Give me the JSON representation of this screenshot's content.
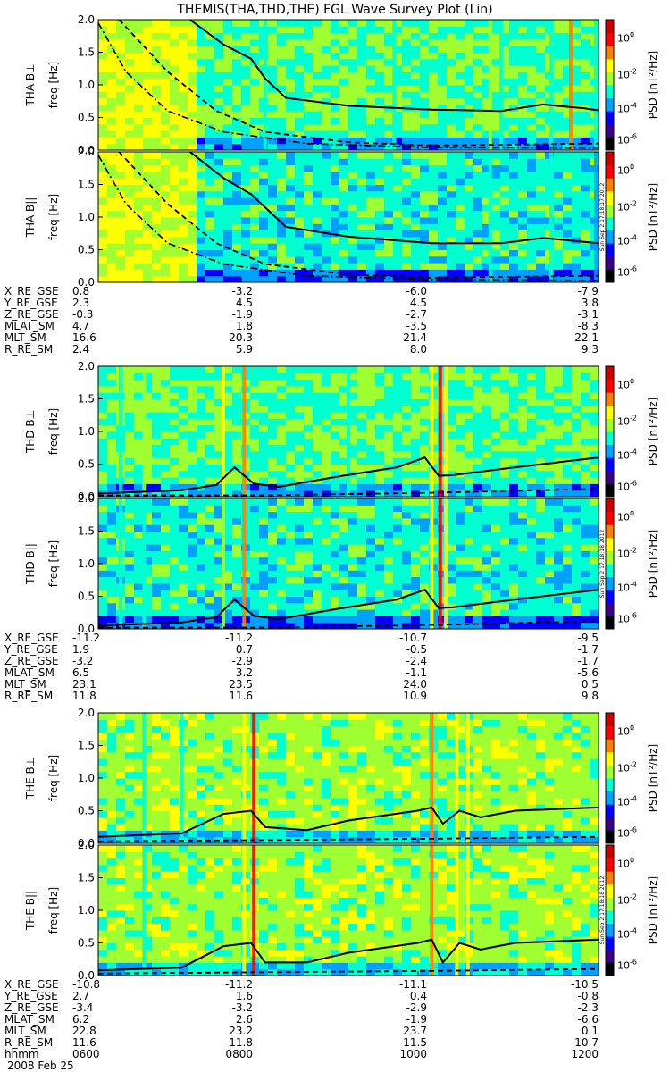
{
  "title": "THEMIS(THA,THD,THE) FGL Wave Survey Plot (Lin)",
  "date_label": "2008 Feb 25",
  "colorbar": {
    "label": "PSD [nT²/Hz]",
    "ticks": [
      {
        "base": "10",
        "exp": "0"
      },
      {
        "base": "10",
        "exp": "-2"
      },
      {
        "base": "10",
        "exp": "-4"
      },
      {
        "base": "10",
        "exp": "-6"
      }
    ],
    "colors": [
      "#000000",
      "#3a0088",
      "#0000ff",
      "#00a0ff",
      "#00ffd0",
      "#a0ff30",
      "#ffff00",
      "#ff8000",
      "#ff0000",
      "#cc0000"
    ]
  },
  "groups": [
    {
      "id": "THA",
      "timestamp": "Sun Sep  2 17:18:17 2012",
      "panels": [
        {
          "id": "tha-bperp",
          "ylabel": "THA B⊥"
        },
        {
          "id": "tha-bpar",
          "ylabel": "THA B||"
        }
      ],
      "orbit": {
        "rows": [
          "X_RE_GSE",
          "Y_RE_GSE",
          "Z_RE_GSE",
          "MLAT_SM",
          "MLT_SM",
          "R_RE_SM"
        ],
        "values": [
          [
            "0.8",
            "-3.2",
            "-6.0",
            "-7.9"
          ],
          [
            "2.3",
            "4.5",
            "4.5",
            "3.8"
          ],
          [
            "-0.3",
            "-1.9",
            "-2.7",
            "-3.1"
          ],
          [
            "4.7",
            "1.8",
            "-3.5",
            "-8.3"
          ],
          [
            "16.6",
            "20.3",
            "21.4",
            "22.1"
          ],
          [
            "2.4",
            "5.9",
            "8.0",
            "9.3"
          ]
        ]
      }
    },
    {
      "id": "THD",
      "timestamp": "Sun Sep  2 17:18:18 2012",
      "panels": [
        {
          "id": "thd-bperp",
          "ylabel": "THD B⊥"
        },
        {
          "id": "thd-bpar",
          "ylabel": "THD B||"
        }
      ],
      "orbit": {
        "rows": [
          "X_RE_GSE",
          "Y_RE_GSE",
          "Z_RE_GSE",
          "MLAT_SM",
          "MLT_SM",
          "R_RE_SM"
        ],
        "values": [
          [
            "-11.2",
            "-11.2",
            "-10.7",
            "-9.5"
          ],
          [
            "1.9",
            "0.7",
            "-0.5",
            "-1.7"
          ],
          [
            "-3.2",
            "-2.9",
            "-2.4",
            "-1.7"
          ],
          [
            "6.5",
            "3.2",
            "-1.1",
            "-5.6"
          ],
          [
            "23.1",
            "23.5",
            "24.0",
            "0.5"
          ],
          [
            "11.8",
            "11.6",
            "10.9",
            "9.8"
          ]
        ]
      }
    },
    {
      "id": "THE",
      "timestamp": "Sun Sep  2 17:18:18 2012",
      "panels": [
        {
          "id": "the-bperp",
          "ylabel": "THE B⊥"
        },
        {
          "id": "the-bpar",
          "ylabel": "THE B||"
        }
      ],
      "orbit": {
        "rows": [
          "X_RE_GSE",
          "Y_RE_GSE",
          "Z_RE_GSE",
          "MLAT_SM",
          "MLT_SM",
          "R_RE_SM",
          "hhmm"
        ],
        "values": [
          [
            "-10.8",
            "-11.2",
            "-11.1",
            "-10.5"
          ],
          [
            "2.7",
            "1.6",
            "0.4",
            "-0.8"
          ],
          [
            "-3.4",
            "-3.2",
            "-2.9",
            "-2.3"
          ],
          [
            "6.2",
            "2.6",
            "-1.9",
            "-6.6"
          ],
          [
            "22.8",
            "23.2",
            "23.7",
            "0.1"
          ],
          [
            "11.6",
            "11.8",
            "11.5",
            "10.7"
          ],
          [
            "0600",
            "0800",
            "1000",
            "1200"
          ]
        ]
      }
    }
  ],
  "chart_data": {
    "type": "heatmap",
    "title": "THEMIS(THA,THD,THE) FGL Wave Survey Plot (Lin)",
    "xlabel": "hhmm",
    "ylabel": "freq [Hz]",
    "x_ticks": [
      "0600",
      "0800",
      "1000",
      "1200"
    ],
    "xlim": [
      "0600",
      "1200"
    ],
    "ylim": [
      0,
      2.0
    ],
    "y_ticks": [
      0.0,
      0.5,
      1.0,
      1.5,
      2.0
    ],
    "color_scale": {
      "type": "log",
      "label": "PSD [nT²/Hz]",
      "ticks": [
        1,
        0.01,
        0.0001,
        1e-06
      ]
    },
    "panels": [
      {
        "name": "THA B⊥",
        "heat": {
          "base": 1,
          "inner_region": {
            "x": [
              "0600",
              "0706"
            ],
            "level": 6
          }
        },
        "bands": [
          [
            "0800",
            3
          ],
          [
            "0933",
            3
          ],
          [
            "1042",
            4
          ],
          [
            "1050",
            3
          ],
          [
            "1126",
            3
          ],
          [
            "1158",
            3
          ],
          [
            "1140",
            6
          ]
        ],
        "solid": [
          [
            "0706",
            2.0
          ],
          [
            "0730",
            1.62
          ],
          [
            "0750",
            1.4
          ],
          [
            "0800",
            1.1
          ],
          [
            "0815",
            0.8
          ],
          [
            "0900",
            0.68
          ],
          [
            "1000",
            0.62
          ],
          [
            "1050",
            0.6
          ],
          [
            "1120",
            0.7
          ],
          [
            "1150",
            0.64
          ],
          [
            "1200",
            0.61
          ]
        ],
        "dashed": [
          [
            "0615",
            2.0
          ],
          [
            "0650",
            1.2
          ],
          [
            "0725",
            0.6
          ],
          [
            "0800",
            0.28
          ],
          [
            "0900",
            0.12
          ],
          [
            "1000",
            0.07
          ],
          [
            "1200",
            0.1
          ]
        ],
        "dashdot": [
          [
            "0600",
            1.95
          ],
          [
            "0620",
            1.2
          ],
          [
            "0650",
            0.6
          ],
          [
            "0730",
            0.28
          ],
          [
            "0830",
            0.1
          ],
          [
            "1000",
            0.04
          ],
          [
            "1200",
            0.03
          ]
        ]
      },
      {
        "name": "THA B||",
        "heat": {
          "base": 0,
          "inner_region": {
            "x": [
              "0600",
              "0706"
            ],
            "level": 6
          }
        },
        "bands": [
          [
            "1042",
            3
          ],
          [
            "1126",
            3
          ],
          [
            "1158",
            2
          ]
        ],
        "solid": [
          [
            "0706",
            2.0
          ],
          [
            "0730",
            1.6
          ],
          [
            "0750",
            1.35
          ],
          [
            "0815",
            0.85
          ],
          [
            "0900",
            0.7
          ],
          [
            "1000",
            0.6
          ],
          [
            "1050",
            0.6
          ],
          [
            "1120",
            0.68
          ],
          [
            "1200",
            0.6
          ]
        ],
        "dashed": [
          [
            "0615",
            2.0
          ],
          [
            "0650",
            1.2
          ],
          [
            "0725",
            0.6
          ],
          [
            "0800",
            0.28
          ],
          [
            "0900",
            0.12
          ],
          [
            "1000",
            0.07
          ],
          [
            "1200",
            0.1
          ]
        ],
        "dashdot": [
          [
            "0600",
            1.95
          ],
          [
            "0620",
            1.2
          ],
          [
            "0650",
            0.6
          ],
          [
            "0730",
            0.28
          ],
          [
            "0830",
            0.1
          ],
          [
            "1000",
            0.04
          ],
          [
            "1200",
            0.03
          ]
        ]
      },
      {
        "name": "THD B⊥",
        "heat": {
          "base": 1
        },
        "bands": [
          [
            "0616",
            3
          ],
          [
            "0633",
            4
          ],
          [
            "0730",
            5
          ],
          [
            "0745",
            6
          ],
          [
            "1000",
            5
          ],
          [
            "1006",
            7
          ],
          [
            "1010",
            5
          ],
          [
            "0900",
            3
          ]
        ],
        "solid": [
          [
            "0600",
            0.05
          ],
          [
            "0700",
            0.1
          ],
          [
            "0725",
            0.18
          ],
          [
            "0738",
            0.45
          ],
          [
            "0752",
            0.2
          ],
          [
            "0810",
            0.15
          ],
          [
            "0850",
            0.3
          ],
          [
            "0935",
            0.45
          ],
          [
            "0955",
            0.6
          ],
          [
            "1005",
            0.32
          ],
          [
            "1015",
            0.33
          ],
          [
            "1100",
            0.45
          ],
          [
            "1200",
            0.6
          ]
        ],
        "dashed": [
          [
            "0600",
            0.02
          ],
          [
            "0800",
            0.02
          ],
          [
            "1000",
            0.06
          ],
          [
            "1200",
            0.12
          ]
        ]
      },
      {
        "name": "THD B||",
        "heat": {
          "base": 0
        },
        "bands": [
          [
            "0616",
            3
          ],
          [
            "0633",
            3
          ],
          [
            "0730",
            4
          ],
          [
            "0745",
            6
          ],
          [
            "1000",
            5
          ],
          [
            "1006",
            7
          ],
          [
            "1010",
            5
          ]
        ],
        "solid": [
          [
            "0600",
            0.05
          ],
          [
            "0700",
            0.1
          ],
          [
            "0725",
            0.18
          ],
          [
            "0738",
            0.45
          ],
          [
            "0752",
            0.2
          ],
          [
            "0810",
            0.15
          ],
          [
            "0850",
            0.3
          ],
          [
            "0935",
            0.45
          ],
          [
            "0955",
            0.6
          ],
          [
            "1005",
            0.32
          ],
          [
            "1015",
            0.33
          ],
          [
            "1100",
            0.45
          ],
          [
            "1200",
            0.6
          ]
        ],
        "dashed": [
          [
            "0600",
            0.02
          ],
          [
            "0800",
            0.02
          ],
          [
            "1000",
            0.06
          ],
          [
            "1200",
            0.12
          ]
        ]
      },
      {
        "name": "THE B⊥",
        "heat": {
          "base": 2
        },
        "bands": [
          [
            "0633",
            3
          ],
          [
            "0700",
            3
          ],
          [
            "0745",
            5
          ],
          [
            "0752",
            7
          ],
          [
            "1000",
            6
          ],
          [
            "1018",
            5
          ],
          [
            "1026",
            5
          ]
        ],
        "solid": [
          [
            "0600",
            0.1
          ],
          [
            "0700",
            0.15
          ],
          [
            "0730",
            0.45
          ],
          [
            "0750",
            0.5
          ],
          [
            "0800",
            0.25
          ],
          [
            "0830",
            0.2
          ],
          [
            "0900",
            0.35
          ],
          [
            "0950",
            0.5
          ],
          [
            "1000",
            0.55
          ],
          [
            "1008",
            0.3
          ],
          [
            "1020",
            0.5
          ],
          [
            "1035",
            0.4
          ],
          [
            "1100",
            0.5
          ],
          [
            "1200",
            0.55
          ]
        ],
        "dashed": [
          [
            "0600",
            0.03
          ],
          [
            "0800",
            0.05
          ],
          [
            "1000",
            0.07
          ],
          [
            "1200",
            0.1
          ]
        ]
      },
      {
        "name": "THE B||",
        "heat": {
          "base": 2
        },
        "bands": [
          [
            "0633",
            3
          ],
          [
            "0745",
            5
          ],
          [
            "0752",
            7
          ],
          [
            "1000",
            6
          ],
          [
            "1018",
            5
          ],
          [
            "1026",
            5
          ]
        ],
        "solid": [
          [
            "0600",
            0.08
          ],
          [
            "0700",
            0.12
          ],
          [
            "0730",
            0.45
          ],
          [
            "0750",
            0.5
          ],
          [
            "0800",
            0.2
          ],
          [
            "0830",
            0.2
          ],
          [
            "0900",
            0.35
          ],
          [
            "0950",
            0.5
          ],
          [
            "1000",
            0.55
          ],
          [
            "1008",
            0.2
          ],
          [
            "1020",
            0.5
          ],
          [
            "1035",
            0.4
          ],
          [
            "1100",
            0.5
          ],
          [
            "1200",
            0.55
          ]
        ],
        "dashed": [
          [
            "0600",
            0.03
          ],
          [
            "0800",
            0.05
          ],
          [
            "1000",
            0.07
          ],
          [
            "1200",
            0.1
          ]
        ]
      }
    ]
  }
}
